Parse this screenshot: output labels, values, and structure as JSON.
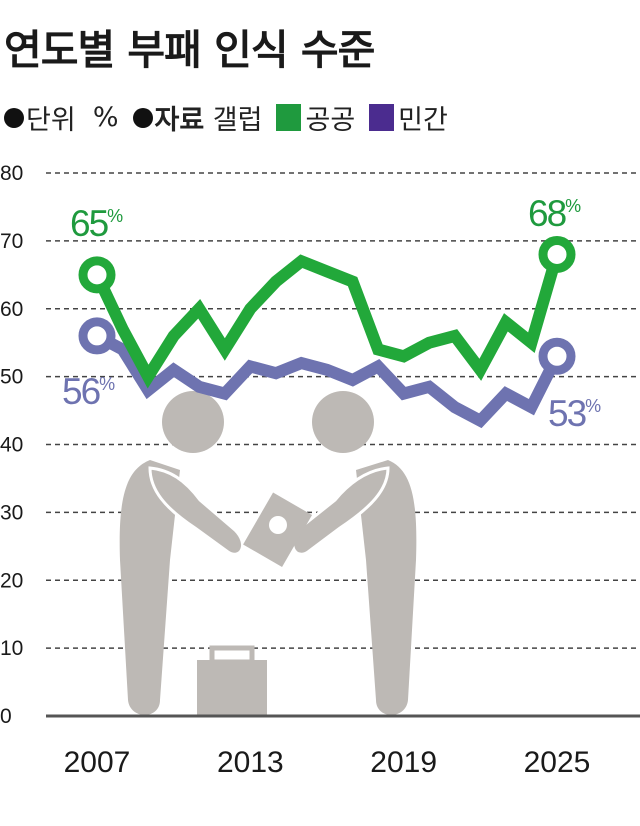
{
  "title": "연도별 부패 인식 수준",
  "legend": {
    "unit_label": "단위",
    "unit_value": "%",
    "source_label": "자료",
    "source_value": "갤럽",
    "series": [
      {
        "name": "공공",
        "color": "#1f9a3e"
      },
      {
        "name": "민간",
        "color": "#4b2c8f"
      }
    ]
  },
  "annotations": {
    "public_start": "65",
    "public_end": "68",
    "private_start": "56",
    "private_end": "53",
    "pct": "%"
  },
  "chart_data": {
    "type": "line",
    "title": "연도별 부패 인식 수준",
    "xlabel": "",
    "ylabel": "%",
    "ylim": [
      0,
      80
    ],
    "yticks": [
      0,
      10,
      20,
      30,
      40,
      50,
      60,
      70,
      80
    ],
    "xtick_labels": [
      "2007",
      "2013",
      "2019",
      "2025"
    ],
    "grid": "horizontal dashed",
    "legend_position": "top",
    "source": "갤럽",
    "x": [
      2007,
      2008,
      2009,
      2010,
      2011,
      2012,
      2013,
      2014,
      2015,
      2016,
      2017,
      2018,
      2019,
      2020,
      2021,
      2022,
      2023,
      2024,
      2025
    ],
    "series": [
      {
        "name": "공공",
        "color": "#22a83a",
        "values": [
          65,
          57,
          50,
          56,
          60,
          54,
          60,
          64,
          67,
          65.5,
          64,
          54,
          53,
          55,
          56,
          51,
          58,
          55,
          68
        ]
      },
      {
        "name": "민간",
        "color": "#6e73b0",
        "values": [
          56,
          54,
          48,
          51,
          48.5,
          47.5,
          51.5,
          50.5,
          52,
          51,
          49.5,
          51.5,
          47.5,
          48.5,
          45.5,
          43.5,
          47.5,
          45.5,
          53
        ]
      }
    ],
    "annotations": [
      "65%",
      "68%",
      "56%",
      "53%"
    ]
  }
}
